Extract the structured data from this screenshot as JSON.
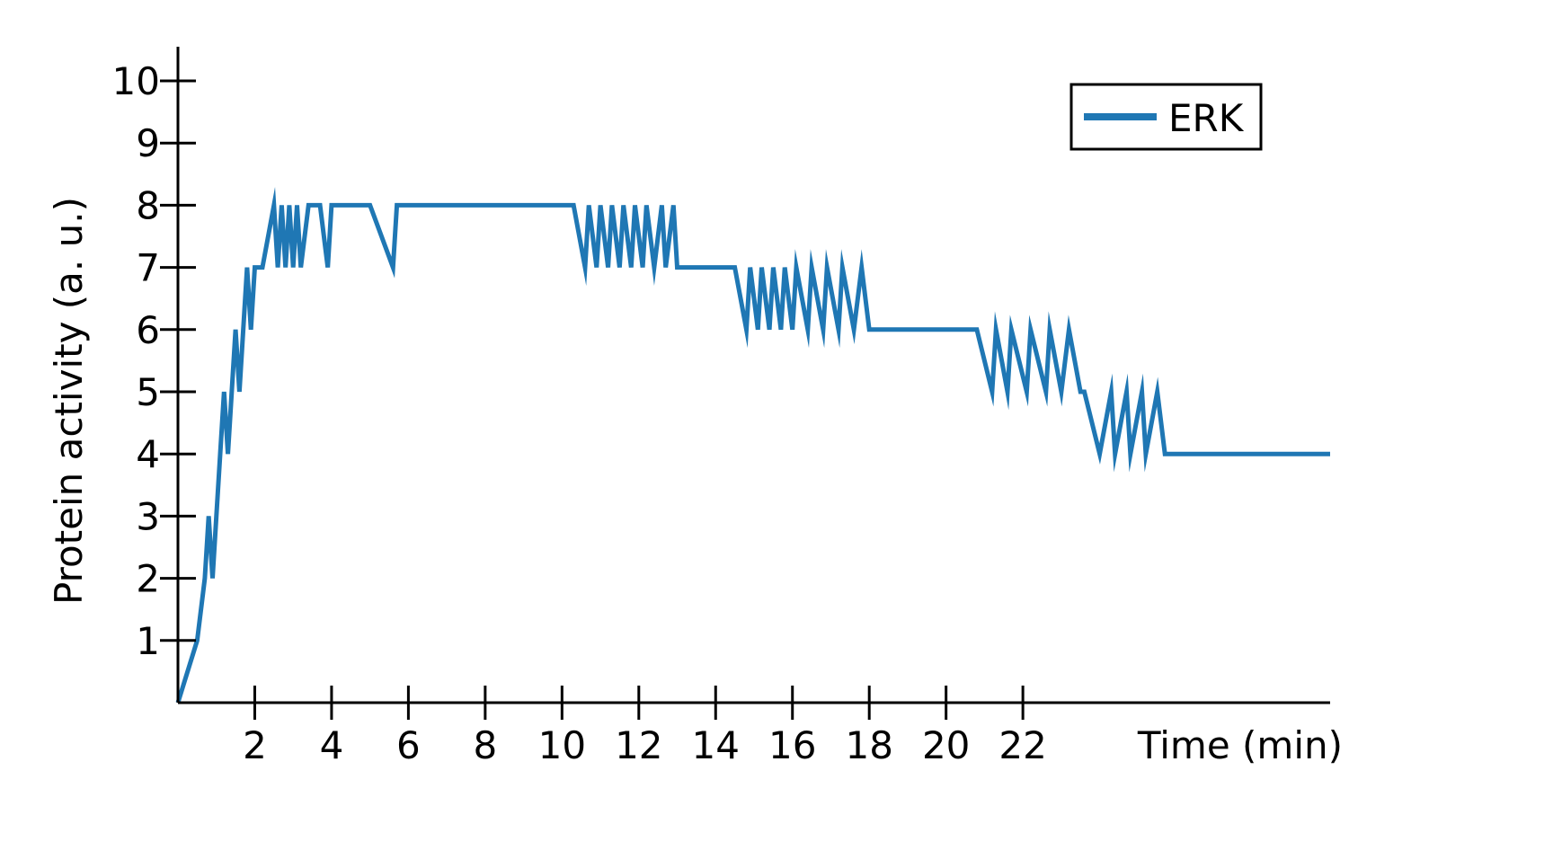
{
  "chart_data": {
    "type": "line",
    "title": "",
    "xlabel": "Time (min)",
    "ylabel": "Protein activity (a. u.)",
    "xlim": [
      0,
      30
    ],
    "ylim": [
      0,
      10
    ],
    "x_ticks": [
      2,
      4,
      6,
      8,
      10,
      12,
      14,
      16,
      18,
      20,
      22
    ],
    "y_ticks": [
      1,
      2,
      3,
      4,
      5,
      6,
      7,
      8,
      9,
      10
    ],
    "grid": false,
    "legend_position": "top-right",
    "series": [
      {
        "name": "ERK",
        "color": "#1f77b4",
        "x": [
          0,
          0.5,
          0.7,
          0.8,
          0.9,
          1.1,
          1.2,
          1.3,
          1.5,
          1.6,
          1.8,
          1.9,
          2.0,
          2.1,
          2.2,
          2.5,
          2.6,
          2.7,
          2.8,
          2.9,
          3.0,
          3.1,
          3.2,
          3.4,
          3.5,
          3.7,
          3.9,
          4.0,
          5.0,
          5.6,
          5.7,
          10.3,
          10.6,
          10.7,
          10.9,
          11.0,
          11.2,
          11.3,
          11.5,
          11.6,
          11.8,
          11.9,
          12.1,
          12.2,
          12.4,
          12.6,
          12.7,
          12.9,
          13.0,
          14.5,
          14.8,
          14.9,
          15.1,
          15.2,
          15.4,
          15.5,
          15.7,
          15.8,
          16.0,
          16.1,
          16.4,
          16.5,
          16.8,
          16.9,
          17.2,
          17.3,
          17.6,
          17.8,
          18.0,
          18.1,
          20.8,
          21.2,
          21.3,
          21.6,
          21.7,
          22.1,
          22.2,
          22.6,
          22.7,
          23.0,
          23.2,
          23.5,
          23.6,
          24.0,
          24.3,
          24.4,
          24.7,
          24.8,
          25.1,
          25.2,
          25.5,
          25.7,
          26.0,
          26.2,
          26.8,
          30.0
        ],
        "y": [
          0,
          1,
          2,
          3,
          2,
          4,
          5,
          4,
          6,
          5,
          7,
          6,
          7,
          7,
          7,
          8,
          7,
          8,
          7,
          8,
          7,
          8,
          7,
          8,
          8,
          8,
          7,
          8,
          8,
          7,
          8,
          8,
          7,
          8,
          7,
          8,
          7,
          8,
          7,
          8,
          7,
          8,
          7,
          8,
          7,
          8,
          7,
          8,
          7,
          7,
          6,
          7,
          6,
          7,
          6,
          7,
          6,
          7,
          6,
          7,
          6,
          7,
          6,
          7,
          6,
          7,
          6,
          7,
          6,
          6,
          6,
          5,
          6,
          5,
          6,
          5,
          6,
          5,
          6,
          5,
          6,
          5,
          5,
          4,
          5,
          4,
          5,
          4,
          5,
          4,
          5,
          4,
          4,
          4,
          4,
          4
        ]
      }
    ]
  }
}
